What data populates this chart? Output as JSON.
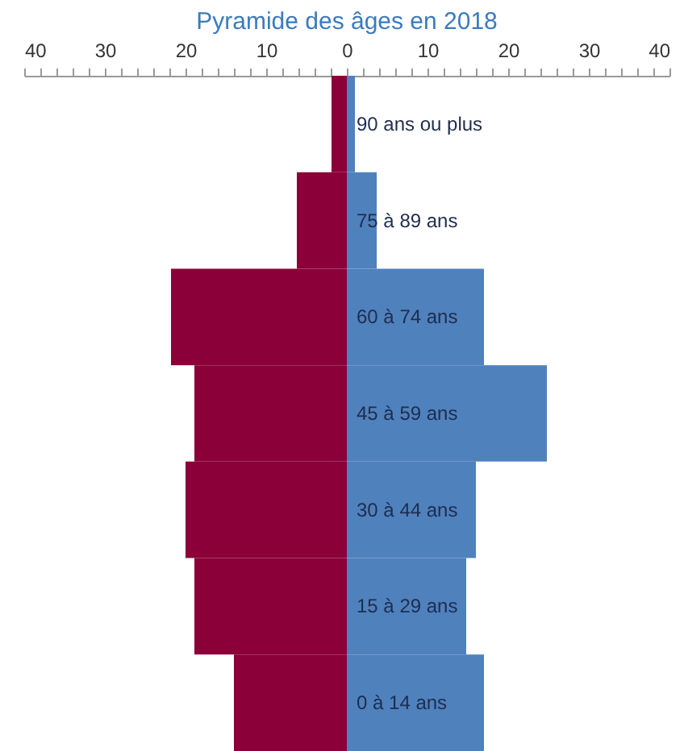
{
  "chart_data": {
    "type": "bar",
    "orientation": "horizontal",
    "title": "Pyramide des âges en 2018",
    "categories": [
      "90 ans ou plus",
      "75 à 89 ans",
      "60 à 74 ans",
      "45 à 59 ans",
      "30 à 44 ans",
      "15 à 29 ans",
      "0 à 14 ans"
    ],
    "series": [
      {
        "color": "#8b0038",
        "values": [
          -1.9,
          -6.2,
          -21.8,
          -18.9,
          -20.0,
          -18.9,
          -14.0
        ]
      },
      {
        "color": "#4f81bd",
        "values": [
          1.0,
          3.7,
          17.0,
          24.8,
          16.0,
          14.8,
          17.0
        ]
      }
    ],
    "xlim": [
      -40,
      40
    ],
    "xticks": [
      {
        "value": -40,
        "label": "40"
      },
      {
        "value": -38,
        "label": null
      },
      {
        "value": -36,
        "label": null
      },
      {
        "value": -34,
        "label": null
      },
      {
        "value": -32,
        "label": null
      },
      {
        "value": -30,
        "label": "30"
      },
      {
        "value": -28,
        "label": null
      },
      {
        "value": -26,
        "label": null
      },
      {
        "value": -24,
        "label": null
      },
      {
        "value": -22,
        "label": null
      },
      {
        "value": -20,
        "label": "20"
      },
      {
        "value": -18,
        "label": null
      },
      {
        "value": -16,
        "label": null
      },
      {
        "value": -14,
        "label": null
      },
      {
        "value": -12,
        "label": null
      },
      {
        "value": -10,
        "label": "10"
      },
      {
        "value": -8,
        "label": null
      },
      {
        "value": -6,
        "label": null
      },
      {
        "value": -4,
        "label": null
      },
      {
        "value": -2,
        "label": null
      },
      0,
      {
        "value": 2,
        "label": null
      },
      {
        "value": 4,
        "label": null
      },
      {
        "value": 6,
        "label": null
      },
      {
        "value": 8,
        "label": null
      },
      10,
      {
        "value": 12,
        "label": null
      },
      {
        "value": 14,
        "label": null
      },
      {
        "value": 16,
        "label": null
      },
      {
        "value": 18,
        "label": null
      },
      20,
      {
        "value": 22,
        "label": null
      },
      {
        "value": 24,
        "label": null
      },
      {
        "value": 26,
        "label": null
      },
      {
        "value": 28,
        "label": null
      },
      30,
      {
        "value": 32,
        "label": null
      },
      {
        "value": 34,
        "label": null
      },
      {
        "value": 36,
        "label": null
      },
      {
        "value": 38,
        "label": null
      },
      40
    ],
    "grid": false,
    "stacked": true
  }
}
